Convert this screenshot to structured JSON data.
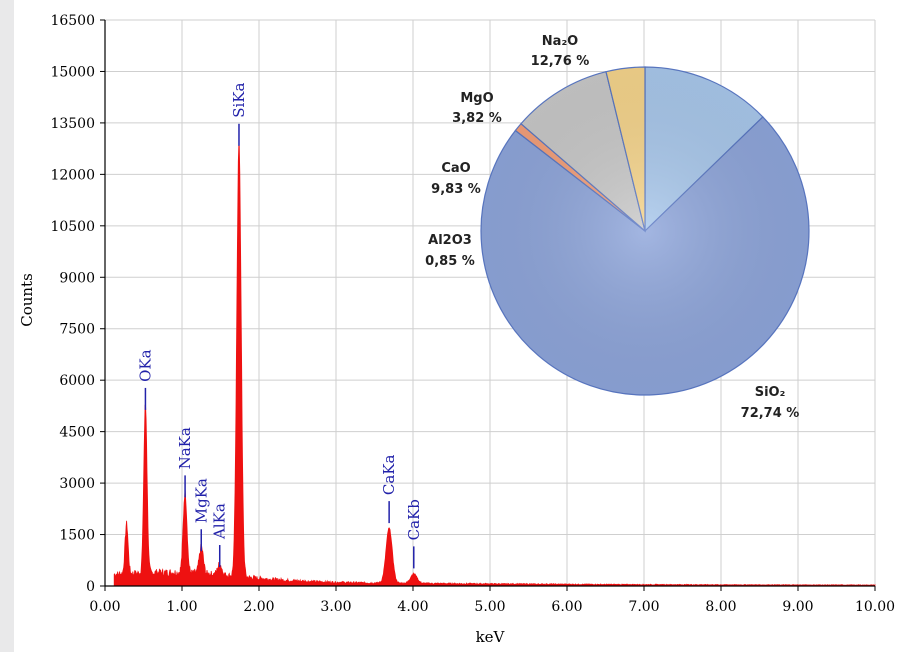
{
  "chart_data": [
    {
      "type": "area",
      "title": "",
      "xlabel": "keV",
      "ylabel": "Counts",
      "xlim": [
        0,
        10
      ],
      "ylim": [
        0,
        16500
      ],
      "xticks": [
        "0.00",
        "1.00",
        "2.00",
        "3.00",
        "4.00",
        "5.00",
        "6.00",
        "7.00",
        "8.00",
        "9.00",
        "10.00"
      ],
      "yticks": [
        "0",
        "1500",
        "3000",
        "4500",
        "6000",
        "7500",
        "9000",
        "10500",
        "12000",
        "13500",
        "15000",
        "16500"
      ],
      "grid": true,
      "series_color": "#ee1111",
      "peaks": [
        {
          "label": "OKa",
          "x": 0.525,
          "y": 4900
        },
        {
          "label": "NaKa",
          "x": 1.04,
          "y": 2350
        },
        {
          "label": "MgKa",
          "x": 1.25,
          "y": 780
        },
        {
          "label": "AlKa",
          "x": 1.49,
          "y": 320
        },
        {
          "label": "SiKa",
          "x": 1.74,
          "y": 12600
        },
        {
          "label": "CaKa",
          "x": 3.69,
          "y": 1600
        },
        {
          "label": "CaKb",
          "x": 4.01,
          "y": 280
        }
      ],
      "extra_peaks": [
        {
          "x": 0.28,
          "y": 1450
        }
      ]
    },
    {
      "type": "pie",
      "slices": [
        {
          "label": "Na₂O",
          "value": 12.76,
          "text": "12,76 %",
          "color": "#a9c8ec"
        },
        {
          "label": "SiO₂",
          "value": 72.74,
          "text": "72,74 %",
          "color": "#8fa6db"
        },
        {
          "label": "Al2O3",
          "value": 0.85,
          "text": "0,85 %",
          "color": "#f4a07a"
        },
        {
          "label": "CaO",
          "value": 9.83,
          "text": "9,83 %",
          "color": "#c9c9c9"
        },
        {
          "label": "MgO",
          "value": 3.82,
          "text": "3,82 %",
          "color": "#f6d58c"
        }
      ]
    }
  ]
}
